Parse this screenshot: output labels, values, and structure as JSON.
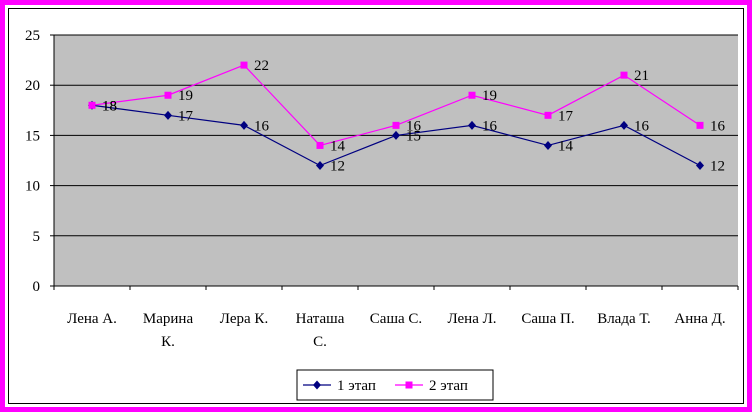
{
  "chart_data": {
    "type": "line",
    "categories": [
      [
        "Лена А."
      ],
      [
        "Марина",
        "К."
      ],
      [
        "Лера К."
      ],
      [
        "Наташа",
        "С."
      ],
      [
        "Саша С."
      ],
      [
        "Лена Л."
      ],
      [
        "Саша П."
      ],
      [
        "Влада Т."
      ],
      [
        "Анна Д."
      ]
    ],
    "series": [
      {
        "name": "1 этап",
        "values": [
          18,
          17,
          16,
          12,
          15,
          16,
          14,
          16,
          12
        ],
        "color": "#000080",
        "marker": "diamond"
      },
      {
        "name": "2 этап",
        "values": [
          18,
          19,
          22,
          14,
          16,
          19,
          17,
          21,
          16
        ],
        "color": "#ff00ff",
        "marker": "square"
      }
    ],
    "ylim": [
      0,
      25
    ],
    "yticks": [
      0,
      5,
      10,
      15,
      20,
      25
    ],
    "grid": true,
    "plot_background": "#c0c0c0",
    "frame_color": "#ff00ff",
    "legend_position": "bottom",
    "data_labels": true
  }
}
